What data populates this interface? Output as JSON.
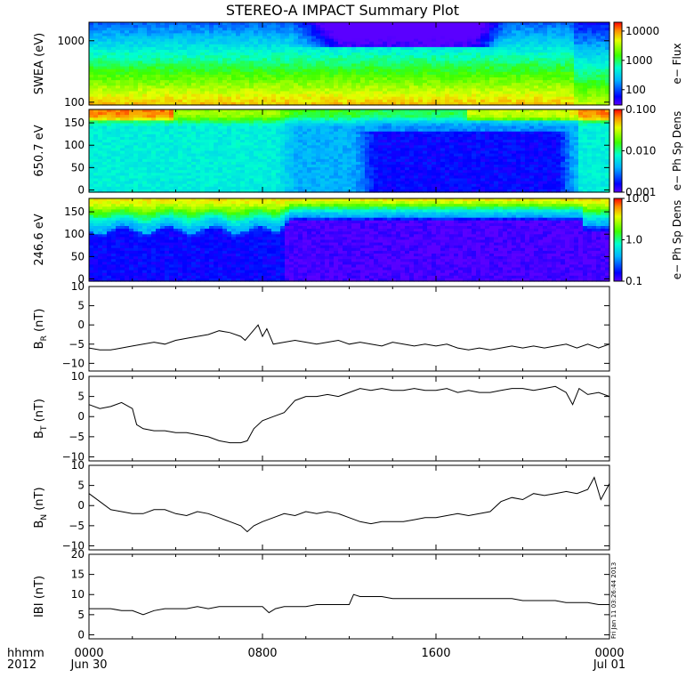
{
  "title": "STEREO-A IMPACT Summary Plot",
  "time_axis": {
    "ticks": [
      {
        "hour": 0,
        "label": "0000",
        "date": "Jun 30"
      },
      {
        "hour": 8,
        "label": "0800",
        "date": ""
      },
      {
        "hour": 16,
        "label": "1600",
        "date": ""
      },
      {
        "hour": 24,
        "label": "0000",
        "date": "Jul 01"
      }
    ],
    "row_label_1": "hhmm",
    "row_label_2": "2012"
  },
  "stamp": "Fri Jan 11 03:26:44 2013",
  "colors": {
    "line": "#000000",
    "frame": "#000000"
  },
  "chart_data": [
    {
      "type": "heatmap",
      "name": "swea",
      "ylabel": "SWEA (eV)",
      "ylog": true,
      "yticks": [
        {
          "v": 100,
          "label": "100"
        },
        {
          "v": 1000,
          "label": "1000"
        }
      ],
      "ylim": [
        90,
        2000
      ],
      "colorbar": {
        "label": "e− Flux",
        "log": true,
        "range": [
          30,
          20000
        ],
        "ticks": [
          {
            "v": 100,
            "label": "100"
          },
          {
            "v": 1000,
            "label": "1000"
          },
          {
            "v": 10000,
            "label": "10000"
          }
        ]
      }
    },
    {
      "type": "heatmap",
      "name": "pad650",
      "ylabel": "650.7 eV",
      "ylim": [
        -5,
        180
      ],
      "yticks": [
        {
          "v": 0,
          "label": "0"
        },
        {
          "v": 50,
          "label": "50"
        },
        {
          "v": 100,
          "label": "100"
        },
        {
          "v": 150,
          "label": "150"
        }
      ],
      "colorbar": {
        "label": "e− Ph Sp Dens",
        "log": true,
        "range": [
          0.001,
          0.1
        ],
        "ticks": [
          {
            "v": 0.001,
            "label": "0.001"
          },
          {
            "v": 0.01,
            "label": "0.010"
          },
          {
            "v": 0.1,
            "label": "0.100"
          }
        ]
      }
    },
    {
      "type": "heatmap",
      "name": "pad246",
      "ylabel": "246.6 eV",
      "ylim": [
        -5,
        180
      ],
      "yticks": [
        {
          "v": 0,
          "label": "0"
        },
        {
          "v": 50,
          "label": "50"
        },
        {
          "v": 100,
          "label": "100"
        },
        {
          "v": 150,
          "label": "150"
        }
      ],
      "colorbar": {
        "label": "e− Ph Sp Dens",
        "log": true,
        "range": [
          0.1,
          10
        ],
        "ticks": [
          {
            "v": 0.1,
            "label": "0.1"
          },
          {
            "v": 1,
            "label": "1.0"
          },
          {
            "v": 10,
            "label": "10.0"
          }
        ]
      }
    },
    {
      "type": "line",
      "name": "br",
      "ylabel_main": "B",
      "ylabel_sub": "R",
      "ylabel_unit": " (nT)",
      "ylim": [
        -12,
        10
      ],
      "yticks": [
        {
          "v": -10,
          "label": "−10"
        },
        {
          "v": -5,
          "label": "−5"
        },
        {
          "v": 0,
          "label": "0"
        },
        {
          "v": 5,
          "label": "5"
        },
        {
          "v": 10,
          "label": "10"
        }
      ],
      "x": [
        0,
        0.5,
        1,
        1.5,
        2,
        2.5,
        3,
        3.5,
        4,
        4.5,
        5,
        5.5,
        6,
        6.5,
        7,
        7.2,
        7.5,
        7.8,
        8,
        8.2,
        8.5,
        9,
        9.5,
        10,
        10.5,
        11,
        11.5,
        12,
        12.5,
        13,
        13.5,
        14,
        14.5,
        15,
        15.5,
        16,
        16.5,
        17,
        17.5,
        18,
        18.5,
        19,
        19.5,
        20,
        20.5,
        21,
        21.5,
        22,
        22.5,
        23,
        23.5,
        24
      ],
      "y": [
        -6,
        -6.5,
        -6.5,
        -6,
        -5.5,
        -5,
        -4.5,
        -5,
        -4,
        -3.5,
        -3,
        -2.5,
        -1.5,
        -2,
        -3,
        -4,
        -2,
        0,
        -3,
        -1,
        -5,
        -4.5,
        -4,
        -4.5,
        -5,
        -4.5,
        -4,
        -5,
        -4.5,
        -5,
        -5.5,
        -4.5,
        -5,
        -5.5,
        -5,
        -5.5,
        -5,
        -6,
        -6.5,
        -6,
        -6.5,
        -6,
        -5.5,
        -6,
        -5.5,
        -6,
        -5.5,
        -5,
        -6,
        -5,
        -6,
        -5
      ]
    },
    {
      "type": "line",
      "name": "bt",
      "ylabel_main": "B",
      "ylabel_sub": "T",
      "ylabel_unit": " (nT)",
      "ylim": [
        -11,
        10
      ],
      "yticks": [
        {
          "v": -10,
          "label": "−10"
        },
        {
          "v": -5,
          "label": "−5"
        },
        {
          "v": 0,
          "label": "0"
        },
        {
          "v": 5,
          "label": "5"
        },
        {
          "v": 10,
          "label": "10"
        }
      ],
      "x": [
        0,
        0.5,
        1,
        1.5,
        2,
        2.2,
        2.5,
        3,
        3.5,
        4,
        4.5,
        5,
        5.5,
        6,
        6.5,
        7,
        7.3,
        7.6,
        8,
        8.5,
        9,
        9.5,
        10,
        10.5,
        11,
        11.5,
        12,
        12.5,
        13,
        13.5,
        14,
        14.5,
        15,
        15.5,
        16,
        16.5,
        17,
        17.5,
        18,
        18.5,
        19,
        19.5,
        20,
        20.5,
        21,
        21.5,
        22,
        22.3,
        22.6,
        23,
        23.5,
        24
      ],
      "y": [
        3,
        2,
        2.5,
        3.5,
        2,
        -2,
        -3,
        -3.5,
        -3.5,
        -4,
        -4,
        -4.5,
        -5,
        -6,
        -6.5,
        -6.5,
        -6,
        -3,
        -1,
        0,
        1,
        4,
        5,
        5,
        5.5,
        5,
        6,
        7,
        6.5,
        7,
        6.5,
        6.5,
        7,
        6.5,
        6.5,
        7,
        6,
        6.5,
        6,
        6,
        6.5,
        7,
        7,
        6.5,
        7,
        7.5,
        6,
        3,
        7,
        5.5,
        6,
        5
      ]
    },
    {
      "type": "line",
      "name": "bn",
      "ylabel_main": "B",
      "ylabel_sub": "N",
      "ylabel_unit": " (nT)",
      "ylim": [
        -11,
        10
      ],
      "yticks": [
        {
          "v": -10,
          "label": "−10"
        },
        {
          "v": -5,
          "label": "−5"
        },
        {
          "v": 0,
          "label": "0"
        },
        {
          "v": 5,
          "label": "5"
        },
        {
          "v": 10,
          "label": "10"
        }
      ],
      "x": [
        0,
        0.5,
        1,
        1.5,
        2,
        2.5,
        3,
        3.5,
        4,
        4.5,
        5,
        5.5,
        6,
        6.5,
        7,
        7.3,
        7.6,
        8,
        8.5,
        9,
        9.5,
        10,
        10.5,
        11,
        11.5,
        12,
        12.5,
        13,
        13.5,
        14,
        14.5,
        15,
        15.5,
        16,
        16.5,
        17,
        17.5,
        18,
        18.5,
        19,
        19.5,
        20,
        20.5,
        21,
        21.5,
        22,
        22.5,
        23,
        23.3,
        23.6,
        24
      ],
      "y": [
        3,
        1,
        -1,
        -1.5,
        -2,
        -2,
        -1,
        -1,
        -2,
        -2.5,
        -1.5,
        -2,
        -3,
        -4,
        -5,
        -6.5,
        -5,
        -4,
        -3,
        -2,
        -2.5,
        -1.5,
        -2,
        -1.5,
        -2,
        -3,
        -4,
        -4.5,
        -4,
        -4,
        -4,
        -3.5,
        -3,
        -3,
        -2.5,
        -2,
        -2.5,
        -2,
        -1.5,
        1,
        2,
        1.5,
        3,
        2.5,
        3,
        3.5,
        3,
        4,
        7,
        1.5,
        5.5
      ]
    },
    {
      "type": "line",
      "name": "bmag",
      "ylabel_main": "IBI",
      "ylabel_sub": "",
      "ylabel_unit": " (nT)",
      "ylim": [
        -1,
        20
      ],
      "yticks": [
        {
          "v": 0,
          "label": "0"
        },
        {
          "v": 5,
          "label": "5"
        },
        {
          "v": 10,
          "label": "10"
        },
        {
          "v": 15,
          "label": "15"
        },
        {
          "v": 20,
          "label": "20"
        }
      ],
      "x": [
        0,
        0.5,
        1,
        1.5,
        2,
        2.5,
        3,
        3.5,
        4,
        4.5,
        5,
        5.5,
        6,
        6.5,
        7,
        7.5,
        8,
        8.3,
        8.6,
        9,
        9.5,
        10,
        10.5,
        11,
        11.5,
        12,
        12.2,
        12.5,
        13,
        13.5,
        14,
        14.5,
        15,
        15.5,
        16,
        16.5,
        17,
        17.5,
        18,
        18.5,
        19,
        19.5,
        20,
        20.5,
        21,
        21.5,
        22,
        22.5,
        23,
        23.5,
        24
      ],
      "y": [
        6.5,
        6.5,
        6.5,
        6,
        6,
        5,
        6,
        6.5,
        6.5,
        6.5,
        7,
        6.5,
        7,
        7,
        7,
        7,
        7,
        5.5,
        6.5,
        7,
        7,
        7,
        7.5,
        7.5,
        7.5,
        7.5,
        10,
        9.5,
        9.5,
        9.5,
        9,
        9,
        9,
        9,
        9,
        9,
        9,
        9,
        9,
        9,
        9,
        9,
        8.5,
        8.5,
        8.5,
        8.5,
        8,
        8,
        8,
        7.5,
        7.5
      ]
    }
  ]
}
